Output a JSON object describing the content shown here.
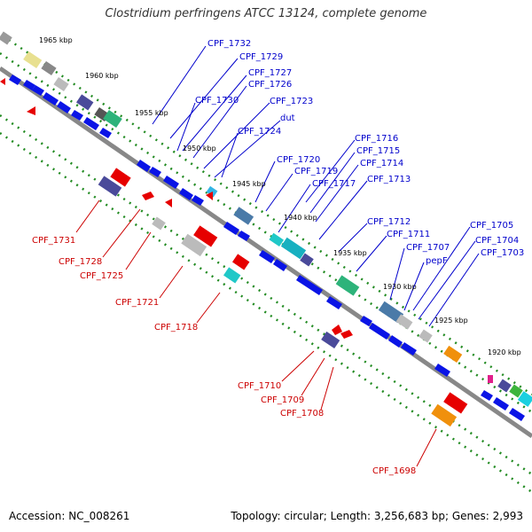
{
  "title": "Clostridium perfringens ATCC 13124, complete genome",
  "footer": {
    "accession": "Accession: NC_008261",
    "topology": "Topology: circular; Length: 3,256,683 bp; Genes: 2,993"
  },
  "colors": {
    "backbone": "#888888",
    "forward_label": "#0000cc",
    "reverse_label": "#cc0000",
    "tick": "#228b22"
  },
  "kbp_labels": [
    "1965 kbp",
    "1960 kbp",
    "1955 kbp",
    "1950 kbp",
    "1945 kbp",
    "1940 kbp",
    "1935 kbp",
    "1930 kbp",
    "1925 kbp",
    "1920 kbp"
  ],
  "forward_labels": [
    "CPF_1732",
    "CPF_1729",
    "CPF_1727",
    "CPF_1726",
    "CPF_1730",
    "CPF_1723",
    "dut",
    "CPF_1724",
    "CPF_1716",
    "CPF_1715",
    "CPF_1714",
    "CPF_1720",
    "CPF_1719",
    "CPF_1717",
    "CPF_1713",
    "CPF_1712",
    "CPF_1711",
    "CPF_1707",
    "pepF",
    "CPF_1705",
    "CPF_1704",
    "CPF_1703"
  ],
  "reverse_labels": [
    "CPF_1731",
    "CPF_1728",
    "CPF_1725",
    "CPF_1721",
    "CPF_1718",
    "CPF_1710",
    "CPF_1709",
    "CPF_1708",
    "CPF_1698"
  ]
}
